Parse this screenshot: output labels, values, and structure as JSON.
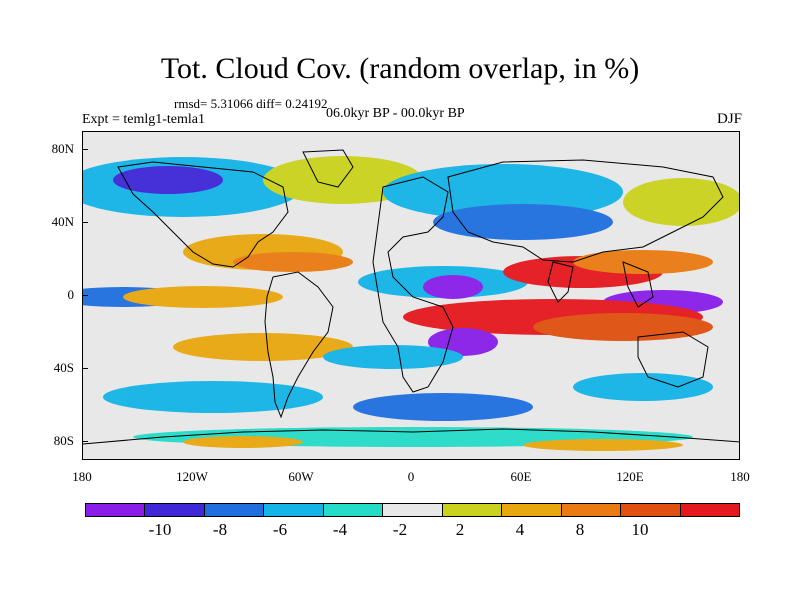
{
  "title": "Tot. Cloud Cov. (random overlap, in %)",
  "stats": "rmsd= 5.31066 diff= 0.24192",
  "experiment": "Expt = temlg1-temla1",
  "period": "06.0kyr BP - 00.0kyr BP",
  "season": "DJF",
  "y_ticks": [
    "80N",
    "40N",
    "0",
    "40S",
    "80S"
  ],
  "x_ticks": [
    "180",
    "120W",
    "60W",
    "0",
    "60E",
    "120E",
    "180"
  ],
  "legend": {
    "labels": [
      "-10",
      "-8",
      "-6",
      "-4",
      "-2",
      "2",
      "4",
      "8",
      "10"
    ],
    "colors": [
      "#8a1ee8",
      "#3e28d8",
      "#1f6fe0",
      "#14b4e6",
      "#25dcc8",
      "#e8e8e8",
      "#c9d21c",
      "#e8a70e",
      "#ea7b12",
      "#e05010",
      "#e5181e"
    ]
  },
  "map_data": {
    "variable": "Total cloud cover difference (%)",
    "x_range": [
      -180,
      180
    ],
    "y_range": [
      -90,
      90
    ],
    "projection": "cylindrical equidistant"
  }
}
